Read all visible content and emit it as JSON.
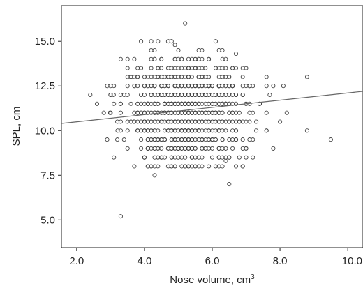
{
  "chart_data": {
    "type": "scatter",
    "title": "",
    "xlabel": "Nose volume, cm",
    "xlabel_superscript": "3",
    "ylabel": "SPL, cm",
    "xlim": [
      1.55,
      10.45
    ],
    "ylim": [
      3.45,
      17.0
    ],
    "xticks": [
      2.0,
      4.0,
      6.0,
      8.0,
      10.0
    ],
    "xtick_labels": [
      "2.0",
      "4.0",
      "6.0",
      "8.0",
      "10.0"
    ],
    "yticks": [
      5.0,
      7.5,
      10.0,
      12.5,
      15.0
    ],
    "ytick_labels": [
      "5.0",
      "7.5",
      "10.0",
      "12.5",
      "15.0"
    ],
    "grid": false,
    "legend": "none",
    "marker": "open circle",
    "marker_color": "#444444",
    "fit_line": {
      "x": [
        1.55,
        10.45
      ],
      "y": [
        10.4,
        12.2
      ],
      "color": "#666666"
    },
    "points_note": "approx. 1000 observations centred near x=5.2, y=11.0",
    "cluster": {
      "x_mean": 5.2,
      "x_sd": 0.9,
      "y_mean": 11.0,
      "y_sd": 1.4,
      "n": 950
    },
    "points": [
      {
        "x": 5.2,
        "y": 16.0
      },
      {
        "x": 3.3,
        "y": 5.2
      },
      {
        "x": 6.5,
        "y": 7.0
      },
      {
        "x": 4.3,
        "y": 7.5
      },
      {
        "x": 9.5,
        "y": 9.5
      },
      {
        "x": 8.8,
        "y": 13.0
      },
      {
        "x": 8.8,
        "y": 10.0
      },
      {
        "x": 8.2,
        "y": 11.0
      },
      {
        "x": 2.4,
        "y": 12.0
      },
      {
        "x": 2.6,
        "y": 11.5
      },
      {
        "x": 2.8,
        "y": 11.0
      },
      {
        "x": 3.0,
        "y": 12.0
      },
      {
        "x": 3.0,
        "y": 12.5
      },
      {
        "x": 4.4,
        "y": 15.0
      },
      {
        "x": 4.9,
        "y": 14.8
      },
      {
        "x": 6.7,
        "y": 14.3
      },
      {
        "x": 7.6,
        "y": 13.0
      },
      {
        "x": 7.8,
        "y": 12.5
      },
      {
        "x": 8.1,
        "y": 12.5
      },
      {
        "x": 7.8,
        "y": 9.0
      },
      {
        "x": 6.4,
        "y": 8.3
      },
      {
        "x": 7.2,
        "y": 8.5
      },
      {
        "x": 4.2,
        "y": 8.0
      },
      {
        "x": 5.7,
        "y": 14.5
      },
      {
        "x": 7.4,
        "y": 11.5
      },
      {
        "x": 8.0,
        "y": 10.5
      },
      {
        "x": 3.5,
        "y": 14.0
      },
      {
        "x": 5.0,
        "y": 14.5
      },
      {
        "x": 6.3,
        "y": 14.0
      }
    ]
  }
}
